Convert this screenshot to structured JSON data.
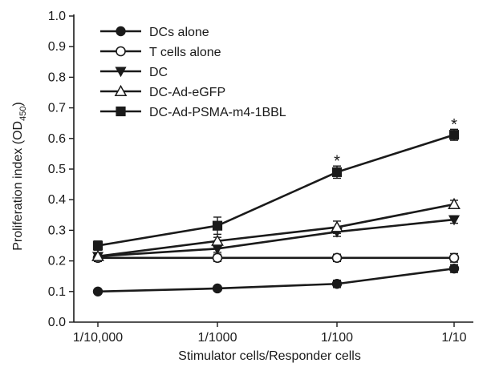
{
  "chart_data": {
    "type": "line",
    "title": "",
    "xlabel": "Stimulator cells/Responder cells",
    "ylabel_main": "Proliferation index (OD",
    "ylabel_sub": "450",
    "ylabel_close": ")",
    "categories": [
      "1/10,000",
      "1/1000",
      "1/100",
      "1/10"
    ],
    "ylim": [
      0.0,
      1.0
    ],
    "yticks": [
      "0.0",
      "0.1",
      "0.2",
      "0.3",
      "0.4",
      "0.5",
      "0.6",
      "0.7",
      "0.8",
      "0.9",
      "1.0"
    ],
    "grid": false,
    "legend_position": "top-left",
    "series": [
      {
        "name": "DCs alone",
        "marker": "circle-filled",
        "values": [
          0.1,
          0.11,
          0.125,
          0.175
        ],
        "errors": [
          0.005,
          0.008,
          0.012,
          0.013
        ]
      },
      {
        "name": "T cells alone",
        "marker": "circle-open",
        "values": [
          0.21,
          0.21,
          0.21,
          0.21
        ],
        "errors": [
          0.012,
          0.012,
          0.012,
          0.014
        ]
      },
      {
        "name": "DC",
        "marker": "triangle-down-filled",
        "values": [
          0.215,
          0.24,
          0.295,
          0.335
        ],
        "errors": [
          0.012,
          0.012,
          0.015,
          0.012
        ]
      },
      {
        "name": "DC-Ad-eGFP",
        "marker": "triangle-up-open",
        "values": [
          0.215,
          0.265,
          0.31,
          0.385
        ],
        "errors": [
          0.012,
          0.012,
          0.02,
          0.013
        ]
      },
      {
        "name": "DC-Ad-PSMA-m4-1BBL",
        "marker": "square-filled",
        "values": [
          0.25,
          0.315,
          0.49,
          0.612
        ],
        "errors": [
          0.015,
          0.028,
          0.02,
          0.018
        ]
      }
    ],
    "annotations": [
      {
        "text": "*",
        "category": "1/100",
        "y": 0.535
      },
      {
        "text": "*",
        "category": "1/10",
        "y": 0.655
      }
    ]
  }
}
